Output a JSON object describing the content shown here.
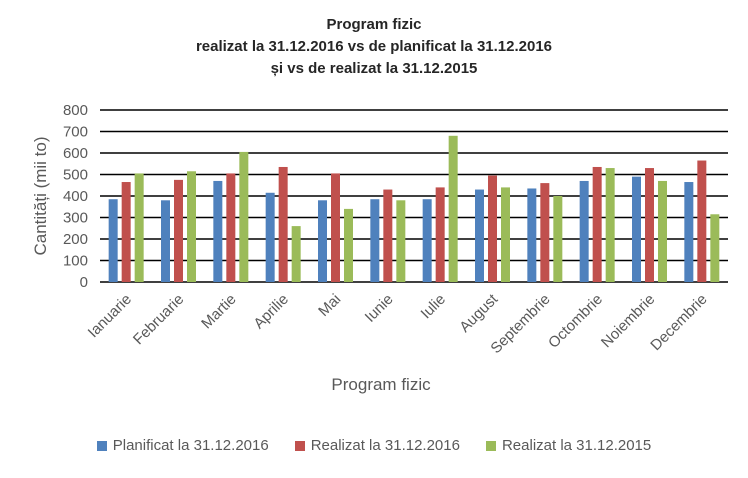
{
  "chart_data": {
    "type": "bar",
    "title_lines": [
      "Program fizic",
      "realizat la 31.12.2016 vs de planificat la 31.12.2016",
      "și vs de  realizat la 31.12.2015"
    ],
    "xlabel": "Program fizic",
    "ylabel": "Cantități (mii to)",
    "ylim": [
      0,
      800
    ],
    "yticks": [
      0,
      100,
      200,
      300,
      400,
      500,
      600,
      700,
      800
    ],
    "grid": true,
    "legend_position": "bottom",
    "categories": [
      "Ianuarie",
      "Februarie",
      "Martie",
      "Aprilie",
      "Mai",
      "Iunie",
      "Iulie",
      "August",
      "Septembrie",
      "Octombrie",
      "Noiembrie",
      "Decembrie"
    ],
    "series": [
      {
        "name": "Planificat la 31.12.2016",
        "color": "#4F81BD",
        "values": [
          385,
          380,
          470,
          415,
          380,
          385,
          385,
          430,
          435,
          470,
          490,
          465
        ]
      },
      {
        "name": "Realizat la 31.12.2016",
        "color": "#C0504D",
        "values": [
          465,
          475,
          505,
          535,
          505,
          430,
          440,
          495,
          460,
          535,
          530,
          565
        ]
      },
      {
        "name": "Realizat la 31.12.2015",
        "color": "#9BBB59",
        "values": [
          505,
          515,
          605,
          260,
          340,
          380,
          680,
          440,
          400,
          530,
          470,
          315
        ]
      }
    ]
  }
}
